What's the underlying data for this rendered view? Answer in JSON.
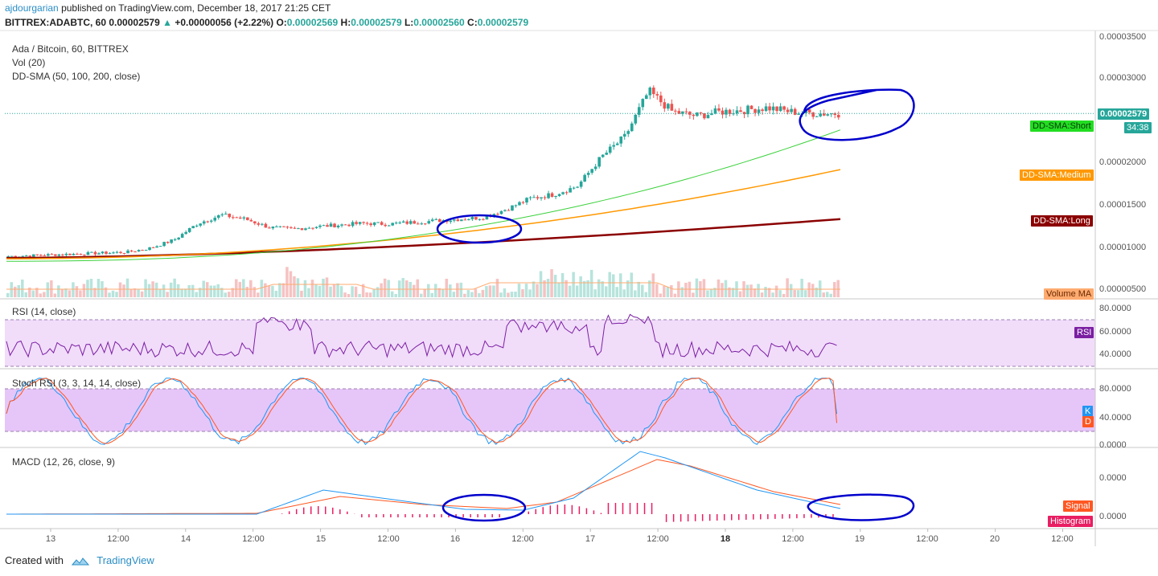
{
  "header": {
    "author": "ajdourgarian",
    "published_text": "published on TradingView.com, December 18, 2017 21:25 CET",
    "symbol_line": "BITTREX:ADABTC, 60",
    "last": "0.00002579",
    "change": "+0.00000056 (+2.22%)",
    "o_label": "O:",
    "o_value": "0.00002569",
    "h_label": "H:",
    "h_value": "0.00002579",
    "l_label": "L:",
    "l_value": "0.00002560",
    "c_label": "C:",
    "c_value": "0.00002579"
  },
  "panes": {
    "main_title": "Ada / Bitcoin, 60, BITTREX",
    "vol_label": "Vol (20)",
    "sma_label": "DD-SMA (50, 100, 200, close)",
    "rsi_label": "RSI (14, close)",
    "stoch_label": "Stoch RSI (3, 3, 14, 14, close)",
    "macd_label": "MACD (12, 26, close, 9)"
  },
  "price_axis": [
    "0.00003500",
    "0.00003000",
    "0.00002000",
    "0.00001500",
    "0.00001000",
    "0.00000500"
  ],
  "rsi_axis": [
    "80.0000",
    "60.0000",
    "40.0000"
  ],
  "stoch_axis": [
    "80.0000",
    "40.0000",
    "0.0000"
  ],
  "macd_axis": [
    "0.0000",
    "0.0000"
  ],
  "time_axis": [
    {
      "label": "13",
      "bold": false
    },
    {
      "label": "12:00",
      "bold": false
    },
    {
      "label": "14",
      "bold": false
    },
    {
      "label": "12:00",
      "bold": false
    },
    {
      "label": "15",
      "bold": false
    },
    {
      "label": "12:00",
      "bold": false
    },
    {
      "label": "16",
      "bold": false
    },
    {
      "label": "12:00",
      "bold": false
    },
    {
      "label": "17",
      "bold": false
    },
    {
      "label": "12:00",
      "bold": false
    },
    {
      "label": "18",
      "bold": true
    },
    {
      "label": "12:00",
      "bold": false
    },
    {
      "label": "19",
      "bold": false
    },
    {
      "label": "12:00",
      "bold": false
    },
    {
      "label": "20",
      "bold": false
    },
    {
      "label": "12:00",
      "bold": false
    }
  ],
  "tags": {
    "price_tag": "0.00002579",
    "countdown": "34:38",
    "sma_short": "DD-SMA:Short",
    "sma_medium": "DD-SMA:Medium",
    "sma_long": "DD-SMA:Long",
    "volume_ma": "Volume MA",
    "rsi": "RSI",
    "k": "K",
    "d": "D",
    "signal": "Signal",
    "histogram": "Histogram"
  },
  "footer": {
    "created_with": "Created with",
    "brand": "TradingView"
  },
  "colors": {
    "up": "#26a69a",
    "down": "#ef5350",
    "sma_short": "#3bd13b",
    "sma_medium": "#ff9800",
    "sma_long": "#8b0000",
    "rsi_line": "#7b1fa2",
    "rsi_band": "#f1dcfa",
    "stoch_k": "#2196f3",
    "stoch_d": "#ff5722",
    "stoch_band": "#e6c6f8",
    "macd_line": "#2196f3",
    "signal_line": "#ff5722",
    "histogram": "#e91e63",
    "annotation": "#0000cc",
    "last_price_line": "#26a69a"
  },
  "chart_data": {
    "type": "candlestick",
    "symbol": "ADABTC",
    "interval": "60",
    "ohlc_last": {
      "open": 2.569e-05,
      "high": 2.579e-05,
      "low": 2.56e-05,
      "close": 2.579e-05
    },
    "approx_close_path": [
      8.5e-06,
      8.6e-06,
      8.7e-06,
      8.8e-06,
      8.9e-06,
      9e-06,
      9.5e-06,
      1.05e-05,
      1.25e-05,
      1.35e-05,
      1.3e-05,
      1.2e-05,
      1.18e-05,
      1.21e-05,
      1.23e-05,
      1.25e-05,
      1.24e-05,
      1.26e-05,
      1.28e-05,
      1.3e-05,
      1.32e-05,
      1.42e-05,
      1.55e-05,
      1.6e-05,
      1.7e-05,
      2.05e-05,
      2.3e-05,
      2.85e-05,
      2.6e-05,
      2.55e-05,
      2.6e-05,
      2.62e-05,
      2.65e-05,
      2.6e-05,
      2.58e-05,
      2.58e-05
    ],
    "sma_short_end": 2.38e-05,
    "sma_medium_end": 1.9e-05,
    "sma_long_end": 1.3e-05,
    "rsi_last": 58,
    "stoch_k_last": 45,
    "stoch_d_last": 32
  }
}
